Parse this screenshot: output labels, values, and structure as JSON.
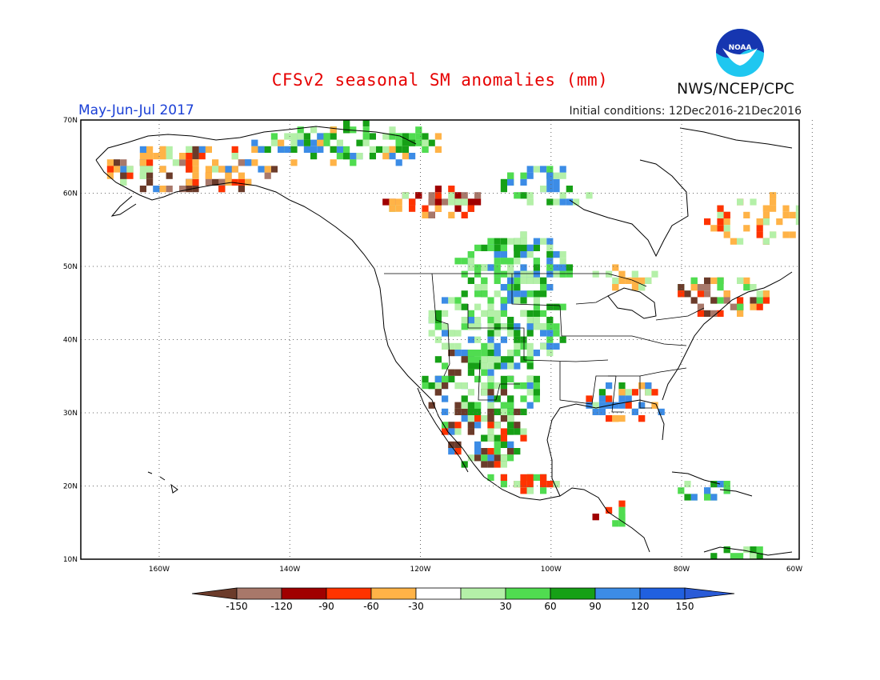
{
  "header": {
    "title": "CFSv2 seasonal SM anomalies (mm)",
    "period": "May-Jun-Jul 2017",
    "initial_conditions": "Initial conditions: 12Dec2016-21Dec2016",
    "agency": "NWS/NCEP/CPC",
    "logo_text": "NOAA"
  },
  "map": {
    "region": "North America",
    "lat_labels": [
      "70N",
      "60N",
      "50N",
      "40N",
      "30N",
      "20N",
      "10N"
    ],
    "lon_labels": [
      "160W",
      "140W",
      "120W",
      "100W",
      "80W",
      "60W"
    ],
    "grid": "dotted"
  },
  "colorbar": {
    "labels": [
      "-150",
      "-120",
      "-90",
      "-60",
      "-30",
      "30",
      "60",
      "90",
      "120",
      "150"
    ],
    "colors": [
      "#6b3b2a",
      "#a8786a",
      "#a00000",
      "#ff3300",
      "#ffb347",
      "#ffffff",
      "#b4f0a8",
      "#50dc50",
      "#16a016",
      "#3c8ce6",
      "#2060e0",
      "#2a5bd7"
    ]
  },
  "chart_data": {
    "type": "heatmap",
    "variable": "soil moisture anomaly (mm)",
    "xlim": [
      -172,
      -62
    ],
    "ylim": [
      10,
      70
    ],
    "ticks_lat": [
      70,
      60,
      50,
      40,
      30,
      20,
      10
    ],
    "ticks_lon": [
      -160,
      -140,
      -120,
      -100,
      -80,
      -60
    ],
    "bins": [
      -150,
      -120,
      -90,
      -60,
      -30,
      30,
      60,
      90,
      120,
      150
    ]
  }
}
